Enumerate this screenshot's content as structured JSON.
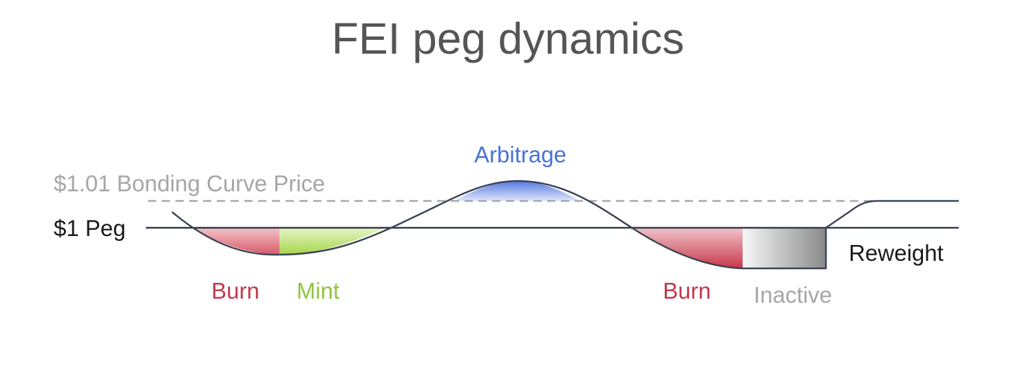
{
  "title": "FEI peg dynamics",
  "labels": {
    "bonding_curve": "$1.01 Bonding Curve Price",
    "peg": "$1 Peg",
    "arbitrage": "Arbitrage",
    "burn_left": "Burn",
    "mint": "Mint",
    "burn_right": "Burn",
    "inactive": "Inactive",
    "reweight": "Reweight"
  },
  "colors": {
    "title": "#555555",
    "burn": "#c0394b",
    "mint": "#8dc63f",
    "arbitrage": "#4a72d8",
    "inactive": "#999999",
    "bonding_curve_text": "#a6a6a6",
    "dashed_line": "#a6a6a6",
    "peg_line": "#333b48",
    "price_curve": "#3a4455",
    "label_dark": "#1a1a1a"
  }
}
